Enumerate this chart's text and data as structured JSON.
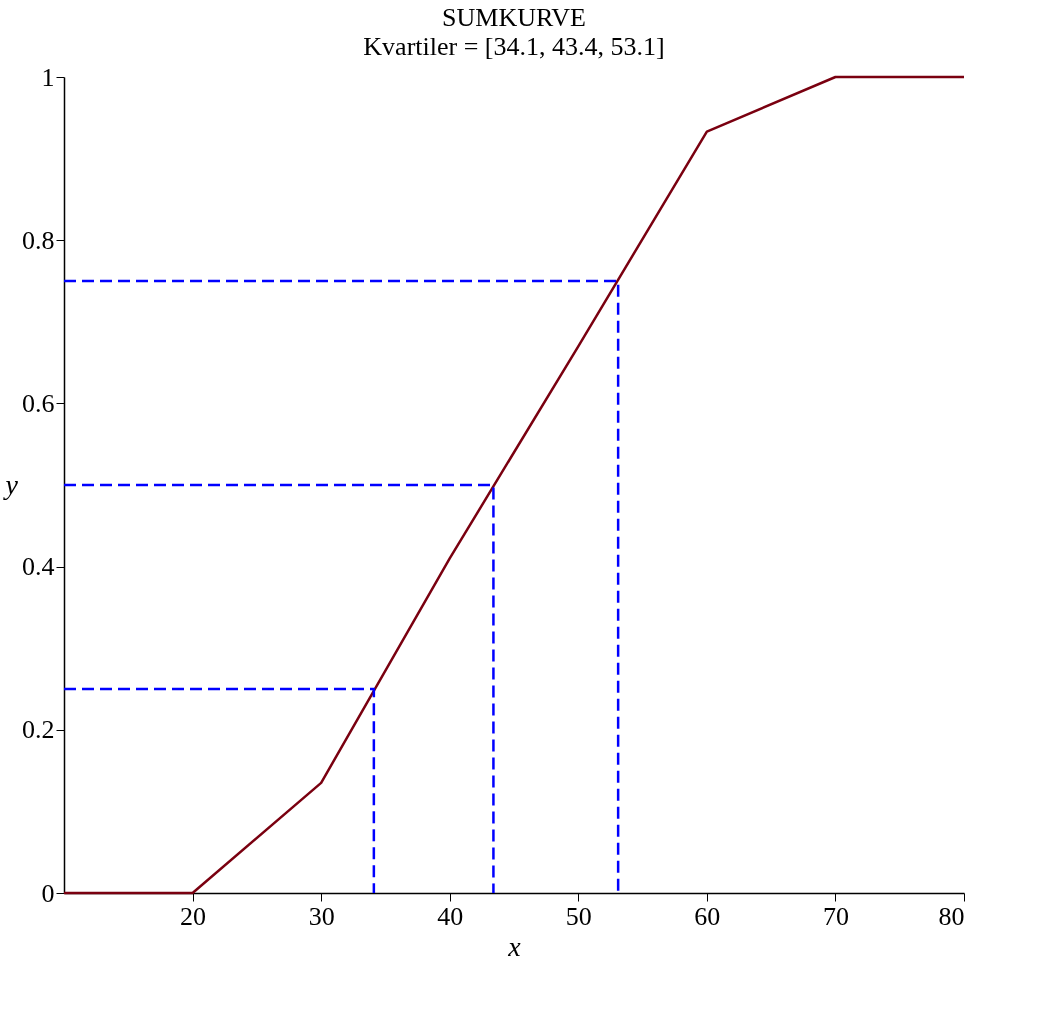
{
  "chart_data": {
    "type": "line",
    "title": "SUMKURVE",
    "subtitle": "Kvartiler = [34.1, 43.4, 53.1]",
    "xlabel": "x",
    "ylabel": "y",
    "xlim": [
      10,
      80
    ],
    "ylim": [
      0,
      1
    ],
    "xticks": [
      20,
      30,
      40,
      50,
      60,
      70,
      80
    ],
    "yticks": [
      0,
      0.2,
      0.4,
      0.6,
      0.8,
      1
    ],
    "grid": false,
    "marker": "none",
    "series": [
      {
        "color": "#7a0010",
        "line_style": "solid",
        "x": [
          10,
          20,
          30,
          40,
          50,
          60,
          70,
          80
        ],
        "values": [
          0,
          0,
          0.135,
          0.41,
          0.67,
          0.933,
          1,
          1
        ]
      },
      {
        "color": "#0000ff",
        "line_style": "dashed",
        "x": [
          10,
          34.1,
          34.1
        ],
        "values": [
          0.25,
          0.25,
          0
        ]
      },
      {
        "color": "#0000ff",
        "line_style": "dashed",
        "x": [
          10,
          43.4,
          43.4
        ],
        "values": [
          0.5,
          0.5,
          0
        ]
      },
      {
        "color": "#0000ff",
        "line_style": "dashed",
        "x": [
          10,
          53.1,
          53.1
        ],
        "values": [
          0.75,
          0.75,
          0
        ]
      }
    ]
  }
}
